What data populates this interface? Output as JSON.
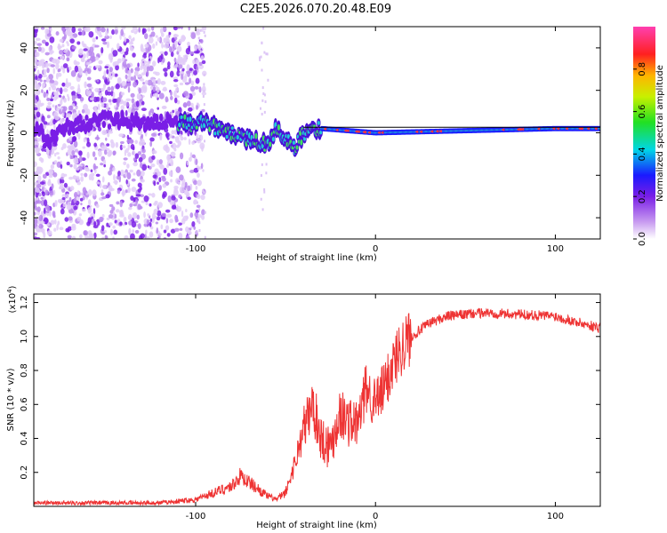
{
  "title": "C2E5.2026.070.20.48.E09",
  "chart_data": [
    {
      "type": "heatmap",
      "title": "C2E5.2026.070.20.48.E09",
      "xlabel": "Height of straight line (km)",
      "ylabel": "Frequency (Hz)",
      "xlim": [
        -190,
        125
      ],
      "ylim": [
        -50,
        50
      ],
      "xticks": [
        -100,
        0,
        100
      ],
      "xtick_labels": [
        "-100",
        "0",
        "100"
      ],
      "yticks": [
        -40,
        -20,
        0,
        20,
        40
      ],
      "ytick_labels": [
        "-40",
        "-20",
        "0",
        "20",
        "40"
      ],
      "colorbar": {
        "label": "Normalized spectral amplitude",
        "range": [
          0,
          1
        ],
        "ticks": [
          0.0,
          0.2,
          0.4,
          0.6,
          0.8
        ],
        "tick_labels": [
          "0.0",
          "0.2",
          "0.4",
          "0.6",
          "0.8"
        ]
      },
      "signal_track": {
        "description_values_freq_hz": [
          [
            -185,
            -5
          ],
          [
            -170,
            3
          ],
          [
            -150,
            6
          ],
          [
            -130,
            5
          ],
          [
            -110,
            5
          ],
          [
            -95,
            4
          ],
          [
            -80,
            0
          ],
          [
            -70,
            -3
          ],
          [
            -60,
            -6
          ],
          [
            -55,
            2
          ],
          [
            -45,
            -8
          ],
          [
            -40,
            0
          ],
          [
            -30,
            2
          ],
          [
            0,
            0
          ],
          [
            50,
            1
          ],
          [
            100,
            2
          ],
          [
            125,
            2
          ]
        ]
      }
    },
    {
      "type": "line",
      "title": "",
      "xlabel": "Height of straight line (km)",
      "ylabel": "SNR (10 * v/v)",
      "ylabel_multiplier": "(x10",
      "ylabel_multiplier_exp": "4",
      "xlim": [
        -190,
        125
      ],
      "ylim": [
        0,
        1.25
      ],
      "xticks": [
        -100,
        0,
        100
      ],
      "xtick_labels": [
        "-100",
        "0",
        "100"
      ],
      "yticks": [
        0.2,
        0.4,
        0.6,
        0.8,
        1.0,
        1.2
      ],
      "ytick_labels": [
        "0.2",
        "0.4",
        "0.6",
        "0.8",
        "1.0",
        "1.2"
      ],
      "series": [
        {
          "name": "SNR",
          "color": "#ee3333",
          "x": [
            -190,
            -150,
            -120,
            -100,
            -90,
            -80,
            -75,
            -70,
            -65,
            -60,
            -55,
            -50,
            -45,
            -40,
            -35,
            -30,
            -25,
            -20,
            -15,
            -10,
            -5,
            0,
            5,
            10,
            15,
            20,
            30,
            40,
            60,
            80,
            100,
            110,
            125
          ],
          "values": [
            0.02,
            0.02,
            0.02,
            0.04,
            0.08,
            0.12,
            0.18,
            0.14,
            0.1,
            0.06,
            0.04,
            0.08,
            0.25,
            0.45,
            0.6,
            0.4,
            0.35,
            0.55,
            0.5,
            0.48,
            0.7,
            0.6,
            0.7,
            0.85,
            0.95,
            1.0,
            1.08,
            1.12,
            1.14,
            1.13,
            1.12,
            1.09,
            1.05
          ]
        }
      ]
    }
  ]
}
